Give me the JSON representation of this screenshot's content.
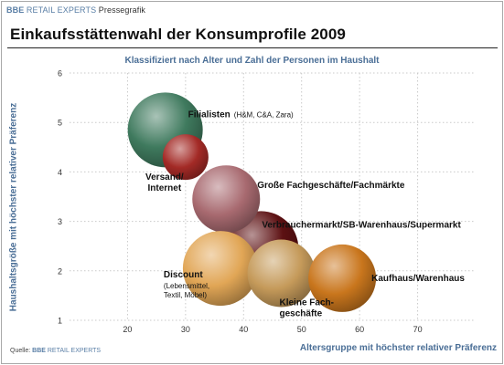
{
  "header": {
    "brand": "BBE",
    "brand2": "RETAIL EXPERTS",
    "tag": "Pressegrafik"
  },
  "source": {
    "prefix": "Quelle:",
    "brand": "BBE",
    "brand2": "RETAIL EXPERTS"
  },
  "colors": {
    "axis_label": "#4a6e96",
    "grid": "#c9c9c9"
  },
  "chart_data": {
    "type": "scatter",
    "title": "Einkaufsstättenwahl der Konsumprofile 2009",
    "subtitle": "Klassifiziert nach Alter und Zahl der Personen im Haushalt",
    "xlabel": "Altersgruppe mit höchster relativer Präferenz",
    "ylabel": "Haushaltsgröße mit höchster relativer Präferenz",
    "xlim": [
      10,
      80
    ],
    "ylim": [
      1,
      6
    ],
    "x_ticks": [
      20,
      30,
      40,
      50,
      60,
      70
    ],
    "y_ticks": [
      1,
      2,
      3,
      4,
      5,
      6
    ],
    "grid": true,
    "series": [
      {
        "name": "Filialisten",
        "note": "(H&M, C&A, Zara)",
        "x": 26.5,
        "y": 4.85,
        "size": "large",
        "color": "#3f7a5e",
        "label_lines": [
          "Filialisten"
        ]
      },
      {
        "name": "Versand/Internet",
        "x": 30,
        "y": 4.3,
        "size": "small",
        "color": "#a32a26",
        "label_lines": [
          "Versand/",
          "Internet"
        ]
      },
      {
        "name": "Große Fachgeschäfte/Fachmärkte",
        "x": 37,
        "y": 3.45,
        "size": "medium",
        "color": "#a86a70",
        "label_lines": [
          "Große Fachgeschäfte/Fachmärkte"
        ]
      },
      {
        "name": "Verbrauchermarkt/SB-Warenhaus/Supermarkt",
        "x": 43,
        "y": 2.45,
        "size": "large",
        "color": "#5c1012",
        "label_lines": [
          "Verbrauchermarkt/SB-Warenhaus/Supermarkt"
        ]
      },
      {
        "name": "Discount",
        "note_lines": [
          "(Lebensmittel,",
          "Textil, Möbel)"
        ],
        "x": 36,
        "y": 2.05,
        "size": "large",
        "color": "#e1a656",
        "label_lines": [
          "Discount"
        ]
      },
      {
        "name": "Kleine Fachgeschäfte",
        "x": 46.5,
        "y": 1.95,
        "size": "medium",
        "color": "#c59a5a",
        "label_lines": [
          "Kleine Fach-",
          "geschäfte"
        ]
      },
      {
        "name": "Kaufhaus/Warenhaus",
        "x": 57,
        "y": 1.85,
        "size": "medium",
        "color": "#c9761d",
        "label_lines": [
          "Kaufhaus/Warenhaus"
        ]
      }
    ]
  }
}
